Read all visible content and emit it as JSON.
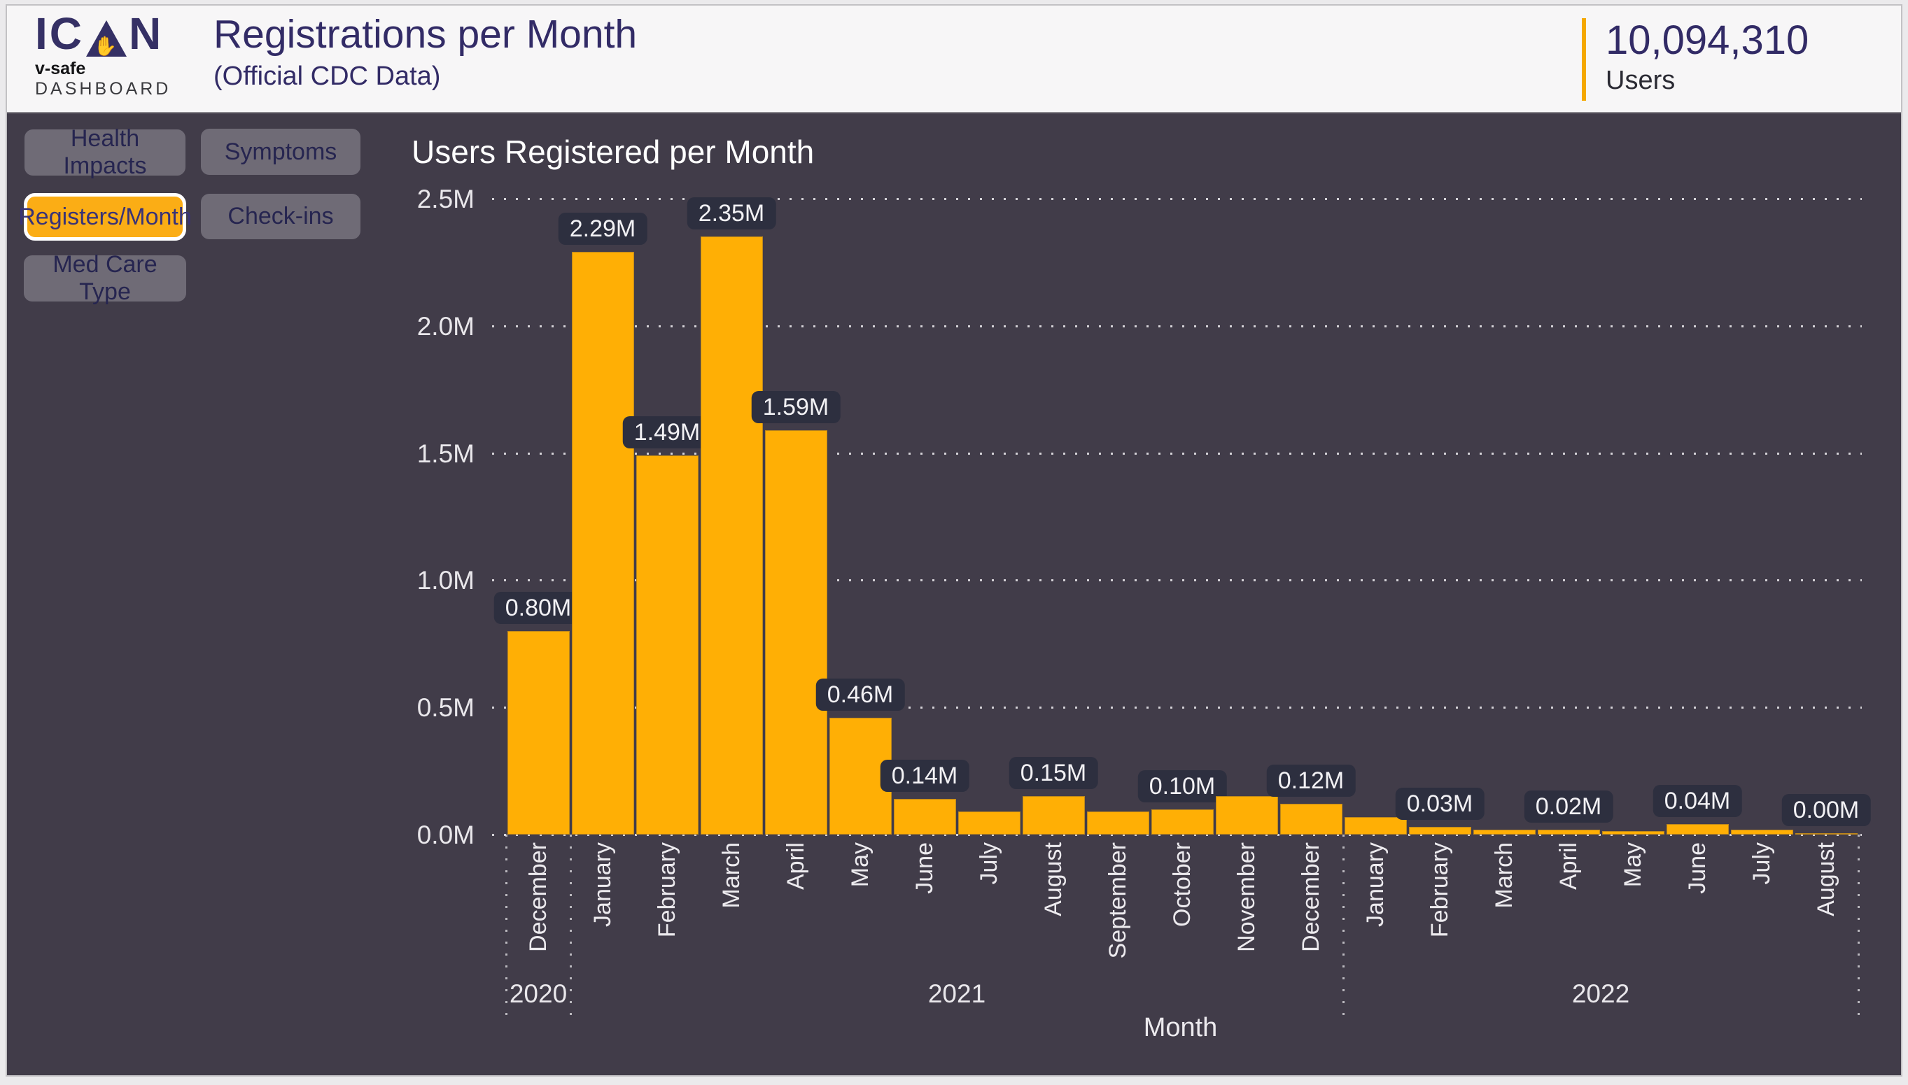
{
  "header": {
    "logo": {
      "word_start": "IC",
      "word_end": "N",
      "hand_icon": "hand-in-triangle",
      "tagline_bold": "v-safe",
      "tagline_rest": "DASHBOARD"
    },
    "title": "Registrations per Month",
    "subtitle": "(Official CDC Data)",
    "stat": {
      "value": "10,094,310",
      "label": "Users"
    },
    "accent_color": "#f5a800"
  },
  "sidebar": {
    "buttons": [
      {
        "label": "Health Impacts",
        "active": false
      },
      {
        "label": "Symptoms",
        "active": false
      },
      {
        "label": "Registers/Month",
        "active": true
      },
      {
        "label": "Check-ins",
        "active": false
      },
      {
        "label": "Med Care Type",
        "active": false
      }
    ]
  },
  "chart_data": {
    "type": "bar",
    "title": "Users Registered per Month",
    "xlabel": "Month",
    "ylabel": "",
    "ylim_millions": [
      0,
      2.5
    ],
    "grid": "horizontal dotted",
    "legend": "none",
    "bar_color": "#ffaf05",
    "label_badge_color": "#2d2f3f",
    "background_color": "#413c49",
    "categories": [
      "December",
      "January",
      "February",
      "March",
      "April",
      "May",
      "June",
      "July",
      "August",
      "September",
      "October",
      "November",
      "December",
      "January",
      "February",
      "March",
      "April",
      "May",
      "June",
      "July",
      "August"
    ],
    "values_millions": [
      0.8,
      2.29,
      1.49,
      2.35,
      1.59,
      0.46,
      0.14,
      0.09,
      0.15,
      0.09,
      0.1,
      0.15,
      0.12,
      0.07,
      0.03,
      0.02,
      0.02,
      0.015,
      0.04,
      0.02,
      0.005
    ],
    "bar_labels": [
      "0.80M",
      "2.29M",
      "1.49M",
      "2.35M",
      "1.59M",
      "0.46M",
      "0.14M",
      null,
      "0.15M",
      null,
      "0.10M",
      null,
      "0.12M",
      null,
      "0.03M",
      null,
      "0.02M",
      null,
      "0.04M",
      null,
      "0.00M"
    ],
    "y_ticks": [
      {
        "label": "0.0M",
        "value": 0.0
      },
      {
        "label": "0.5M",
        "value": 0.5
      },
      {
        "label": "1.0M",
        "value": 1.0
      },
      {
        "label": "1.5M",
        "value": 1.5
      },
      {
        "label": "2.0M",
        "value": 2.0
      },
      {
        "label": "2.5M",
        "value": 2.5
      }
    ],
    "year_groups": [
      {
        "label": "2020",
        "start": 0,
        "count": 1
      },
      {
        "label": "2021",
        "start": 1,
        "count": 12
      },
      {
        "label": "2022",
        "start": 13,
        "count": 8
      }
    ]
  }
}
